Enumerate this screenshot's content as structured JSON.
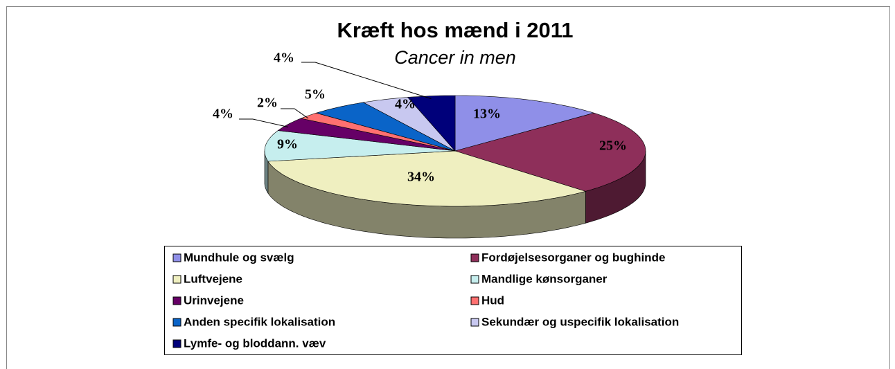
{
  "chart_data": {
    "type": "pie",
    "title": "Kræft hos mænd i 2011",
    "subtitle": "Cancer in men",
    "categories": [
      "Mundhule og svælg",
      "Fordøjelsesorganer og bughinde",
      "Luftvejene",
      "Mandlige kønsorganer",
      "Urinvejene",
      "Hud",
      "Anden specifik lokalisation",
      "Sekundær og uspecifik lokalisation",
      "Lymfe- og bloddann. væv"
    ],
    "values": [
      13,
      25,
      34,
      9,
      4,
      2,
      5,
      4,
      4
    ],
    "value_labels": [
      "13%",
      "25%",
      "34%",
      "9%",
      "4%",
      "2%",
      "5%",
      "4%",
      "4%"
    ],
    "colors": [
      "#8f8fe8",
      "#8e2f5a",
      "#efefc0",
      "#c6eeee",
      "#660066",
      "#ff7070",
      "#0a64c8",
      "#c8c8f0",
      "#00007a"
    ],
    "legend": "bottom"
  }
}
